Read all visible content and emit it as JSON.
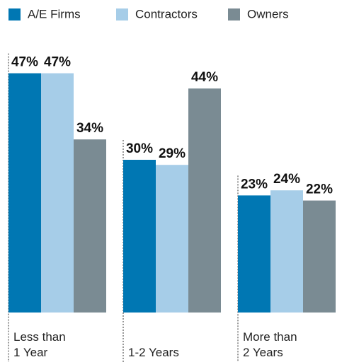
{
  "chart_data": {
    "type": "bar",
    "categories": [
      "Less than\n1 Year",
      "1-2 Years",
      "More than\n2 Years"
    ],
    "series": [
      {
        "name": "A/E Firms",
        "color": "#0077b3",
        "values": [
          47,
          30,
          23
        ],
        "value_labels": [
          "47%",
          "30%",
          "23%"
        ]
      },
      {
        "name": "Contractors",
        "color": "#a6cde8",
        "values": [
          47,
          29,
          24
        ],
        "value_labels": [
          "47%",
          "29%",
          "24%"
        ]
      },
      {
        "name": "Owners",
        "color": "#7a8b93",
        "values": [
          34,
          44,
          22
        ],
        "value_labels": [
          "34%",
          "44%",
          "22%"
        ]
      }
    ]
  }
}
